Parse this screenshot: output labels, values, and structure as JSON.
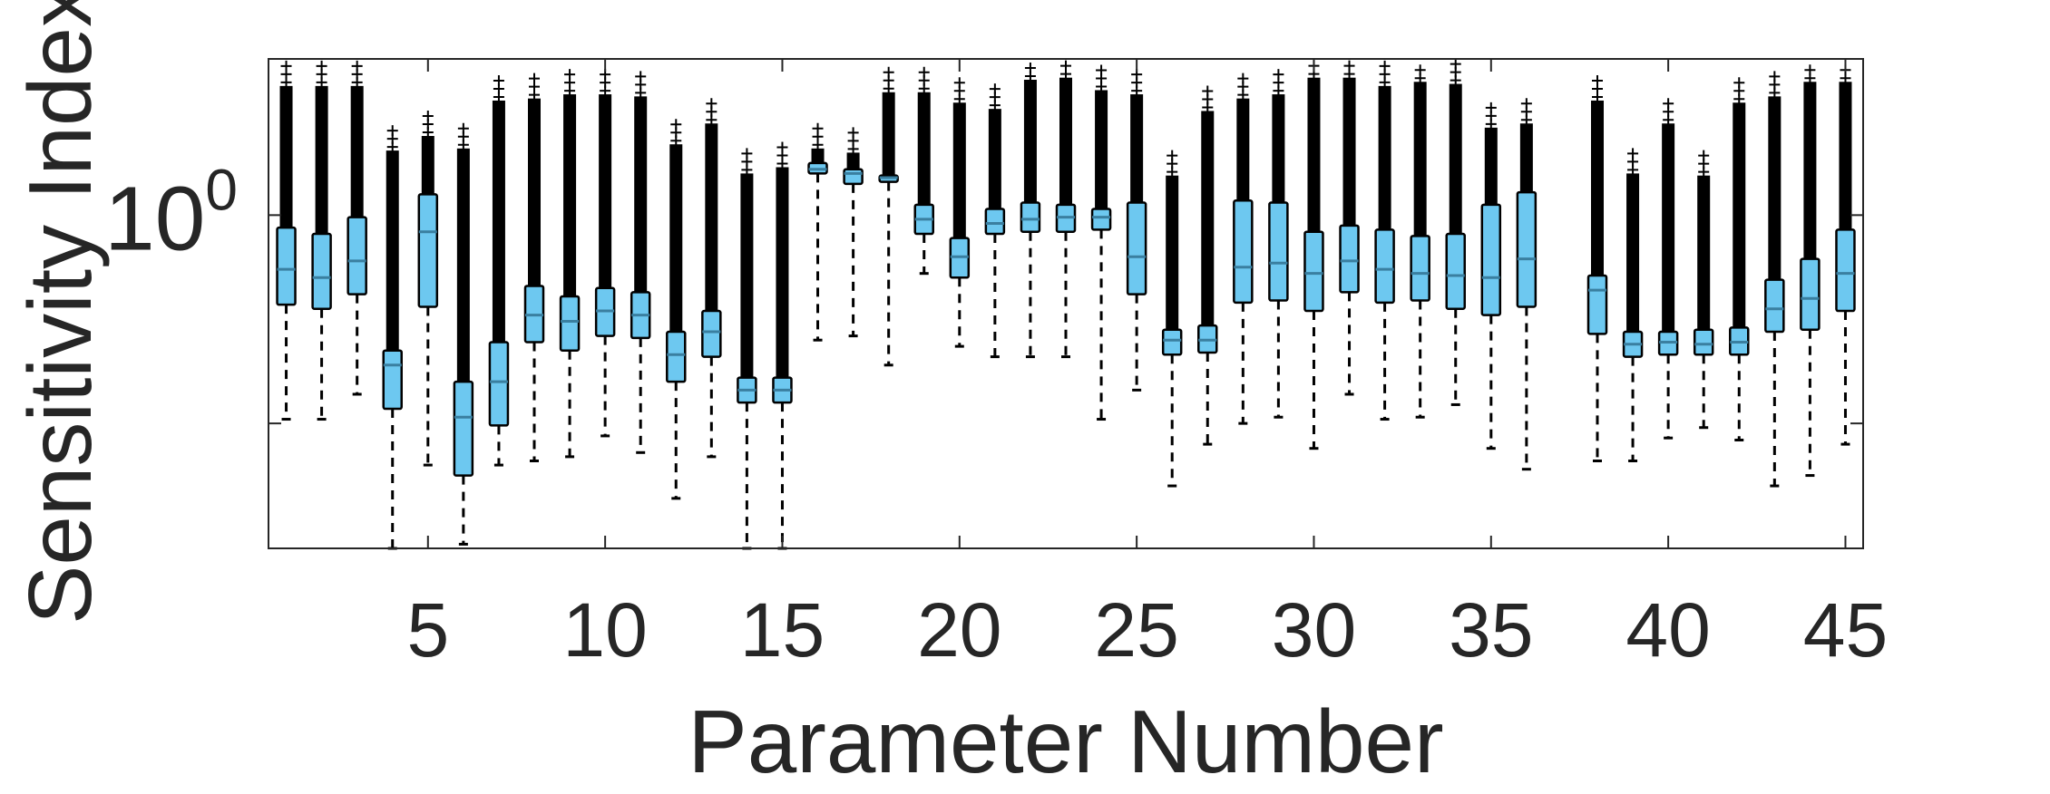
{
  "chart_data": {
    "type": "box",
    "xlabel": "Parameter Number",
    "ylabel": "Sensitivity Index",
    "xlim": [
      0.5,
      45.5
    ],
    "ylim_log10": [
      -1.6,
      0.75
    ],
    "y_scale": "log",
    "x_ticks": [
      5,
      10,
      15,
      20,
      25,
      30,
      35,
      40,
      45
    ],
    "y_ticks": [
      {
        "value_log10": 0,
        "base": "10",
        "exponent": "0"
      },
      {
        "value_log10": -1,
        "base": "",
        "exponent": ""
      }
    ],
    "grid": false,
    "box_color": "#6DC8F0",
    "outlier_color": "#000000",
    "boxes": [
      {
        "param": 1,
        "low": -0.98,
        "q1": -0.43,
        "median": -0.26,
        "q3": -0.06,
        "high": 0.62
      },
      {
        "param": 2,
        "low": -0.98,
        "q1": -0.45,
        "median": -0.3,
        "q3": -0.09,
        "high": 0.62
      },
      {
        "param": 3,
        "low": -0.86,
        "q1": -0.38,
        "median": -0.22,
        "q3": -0.01,
        "high": 0.62
      },
      {
        "param": 4,
        "low": -1.6,
        "q1": -0.93,
        "median": -0.72,
        "q3": -0.65,
        "high": 0.31
      },
      {
        "param": 5,
        "low": -1.2,
        "q1": -0.44,
        "median": -0.08,
        "q3": 0.1,
        "high": 0.38
      },
      {
        "param": 6,
        "low": -1.58,
        "q1": -1.25,
        "median": -0.97,
        "q3": -0.8,
        "high": 0.32
      },
      {
        "param": 7,
        "low": -1.2,
        "q1": -1.01,
        "median": -0.8,
        "q3": -0.61,
        "high": 0.55
      },
      {
        "param": 8,
        "low": -1.18,
        "q1": -0.61,
        "median": -0.48,
        "q3": -0.34,
        "high": 0.56
      },
      {
        "param": 9,
        "low": -1.16,
        "q1": -0.65,
        "median": -0.51,
        "q3": -0.39,
        "high": 0.58
      },
      {
        "param": 10,
        "low": -1.06,
        "q1": -0.58,
        "median": -0.46,
        "q3": -0.35,
        "high": 0.58
      },
      {
        "param": 11,
        "low": -1.14,
        "q1": -0.59,
        "median": -0.48,
        "q3": -0.37,
        "high": 0.57
      },
      {
        "param": 12,
        "low": -1.36,
        "q1": -0.8,
        "median": -0.67,
        "q3": -0.56,
        "high": 0.34
      },
      {
        "param": 13,
        "low": -1.16,
        "q1": -0.68,
        "median": -0.56,
        "q3": -0.46,
        "high": 0.44
      },
      {
        "param": 14,
        "low": -1.6,
        "q1": -0.9,
        "median": -0.84,
        "q3": -0.78,
        "high": 0.2
      },
      {
        "param": 15,
        "low": -1.6,
        "q1": -0.9,
        "median": -0.84,
        "q3": -0.78,
        "high": 0.23
      },
      {
        "param": 16,
        "low": -0.6,
        "q1": 0.2,
        "median": 0.22,
        "q3": 0.25,
        "high": 0.32
      },
      {
        "param": 17,
        "low": -0.58,
        "q1": 0.15,
        "median": 0.2,
        "q3": 0.22,
        "high": 0.3
      },
      {
        "param": 18,
        "low": -0.72,
        "q1": 0.16,
        "median": 0.18,
        "q3": 0.19,
        "high": 0.59
      },
      {
        "param": 19,
        "low": -0.28,
        "q1": -0.09,
        "median": -0.02,
        "q3": 0.05,
        "high": 0.59
      },
      {
        "param": 20,
        "low": -0.63,
        "q1": -0.3,
        "median": -0.2,
        "q3": -0.11,
        "high": 0.54
      },
      {
        "param": 21,
        "low": -0.68,
        "q1": -0.09,
        "median": -0.04,
        "q3": 0.03,
        "high": 0.51
      },
      {
        "param": 22,
        "low": -0.68,
        "q1": -0.08,
        "median": -0.02,
        "q3": 0.06,
        "high": 0.65
      },
      {
        "param": 23,
        "low": -0.68,
        "q1": -0.08,
        "median": -0.01,
        "q3": 0.05,
        "high": 0.66
      },
      {
        "param": 24,
        "low": -0.98,
        "q1": -0.07,
        "median": -0.01,
        "q3": 0.03,
        "high": 0.6
      },
      {
        "param": 25,
        "low": -0.84,
        "q1": -0.38,
        "median": -0.2,
        "q3": 0.06,
        "high": 0.58
      },
      {
        "param": 26,
        "low": -1.3,
        "q1": -0.67,
        "median": -0.6,
        "q3": -0.55,
        "high": 0.19
      },
      {
        "param": 27,
        "low": -1.1,
        "q1": -0.66,
        "median": -0.6,
        "q3": -0.53,
        "high": 0.5
      },
      {
        "param": 28,
        "low": -1.0,
        "q1": -0.42,
        "median": -0.25,
        "q3": 0.07,
        "high": 0.56
      },
      {
        "param": 29,
        "low": -0.97,
        "q1": -0.41,
        "median": -0.23,
        "q3": 0.06,
        "high": 0.58
      },
      {
        "param": 30,
        "low": -1.12,
        "q1": -0.46,
        "median": -0.28,
        "q3": -0.08,
        "high": 0.66
      },
      {
        "param": 31,
        "low": -0.86,
        "q1": -0.37,
        "median": -0.22,
        "q3": -0.05,
        "high": 0.66
      },
      {
        "param": 32,
        "low": -0.98,
        "q1": -0.42,
        "median": -0.26,
        "q3": -0.07,
        "high": 0.62
      },
      {
        "param": 33,
        "low": -0.97,
        "q1": -0.41,
        "median": -0.28,
        "q3": -0.1,
        "high": 0.64
      },
      {
        "param": 34,
        "low": -0.91,
        "q1": -0.45,
        "median": -0.29,
        "q3": -0.09,
        "high": 0.63
      },
      {
        "param": 35,
        "low": -1.12,
        "q1": -0.48,
        "median": -0.3,
        "q3": 0.05,
        "high": 0.42
      },
      {
        "param": 36,
        "low": -1.22,
        "q1": -0.44,
        "median": -0.21,
        "q3": 0.11,
        "high": 0.44
      },
      {
        "param": 38,
        "low": -1.18,
        "q1": -0.57,
        "median": -0.36,
        "q3": -0.29,
        "high": 0.55
      },
      {
        "param": 39,
        "low": -1.18,
        "q1": -0.68,
        "median": -0.62,
        "q3": -0.56,
        "high": 0.2
      },
      {
        "param": 40,
        "low": -1.07,
        "q1": -0.67,
        "median": -0.61,
        "q3": -0.56,
        "high": 0.44
      },
      {
        "param": 41,
        "low": -1.02,
        "q1": -0.67,
        "median": -0.62,
        "q3": -0.55,
        "high": 0.19
      },
      {
        "param": 42,
        "low": -1.08,
        "q1": -0.67,
        "median": -0.61,
        "q3": -0.54,
        "high": 0.54
      },
      {
        "param": 43,
        "low": -1.3,
        "q1": -0.56,
        "median": -0.45,
        "q3": -0.31,
        "high": 0.57
      },
      {
        "param": 44,
        "low": -1.25,
        "q1": -0.55,
        "median": -0.4,
        "q3": -0.21,
        "high": 0.64
      },
      {
        "param": 45,
        "low": -1.1,
        "q1": -0.46,
        "median": -0.28,
        "q3": -0.07,
        "high": 0.64
      }
    ]
  }
}
